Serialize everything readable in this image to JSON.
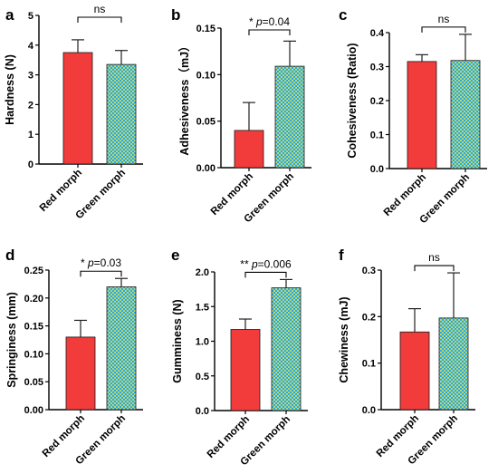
{
  "colors": {
    "red": "#f23b3b",
    "pattern_blue": "#29a8e6",
    "pattern_green": "#b8d870",
    "axis": "#000000"
  },
  "chart_data": [
    {
      "letter": "a",
      "type": "bar",
      "categories": [
        "Red morph",
        "Green morph"
      ],
      "ylabel": "Hardness (N)",
      "values": [
        3.75,
        3.35
      ],
      "errors": [
        0.43,
        0.47
      ],
      "ylim": [
        0,
        5
      ],
      "yticks": [
        "0",
        "1",
        "2",
        "3",
        "4",
        "5"
      ],
      "significance": {
        "stars": "",
        "text": "ns"
      }
    },
    {
      "letter": "b",
      "type": "bar",
      "categories": [
        "Red morph",
        "Green morph"
      ],
      "ylabel": "Adhesiveness（mJ）",
      "values": [
        0.04,
        0.109
      ],
      "errors": [
        0.03,
        0.027
      ],
      "ylim": [
        0,
        0.15
      ],
      "yticks": [
        "0.00",
        "0.05",
        "0.10",
        "0.15"
      ],
      "significance": {
        "stars": "*",
        "text": "p=0.04"
      }
    },
    {
      "letter": "c",
      "type": "bar",
      "categories": [
        "Red morph",
        "Green morph"
      ],
      "ylabel": "Cohesiveness (Ratio)",
      "values": [
        0.315,
        0.318
      ],
      "errors": [
        0.02,
        0.077
      ],
      "ylim": [
        0,
        0.4
      ],
      "yticks": [
        "0.0",
        "0.1",
        "0.2",
        "0.3",
        "0.4"
      ],
      "significance": {
        "stars": "",
        "text": "ns"
      }
    },
    {
      "letter": "d",
      "type": "bar",
      "categories": [
        "Red morph",
        "Green morph"
      ],
      "ylabel": "Springiness (mm)",
      "values": [
        0.13,
        0.22
      ],
      "errors": [
        0.03,
        0.015
      ],
      "ylim": [
        0,
        0.25
      ],
      "yticks": [
        "0.00",
        "0.05",
        "0.10",
        "0.15",
        "0.20",
        "0.25"
      ],
      "significance": {
        "stars": "*",
        "text": "p=0.03"
      }
    },
    {
      "letter": "e",
      "type": "bar",
      "categories": [
        "Red morph",
        "Green morph"
      ],
      "ylabel": "Gumminess (N)",
      "values": [
        1.17,
        1.77
      ],
      "errors": [
        0.15,
        0.12
      ],
      "ylim": [
        0,
        2.0
      ],
      "yticks": [
        "0.0",
        "0.5",
        "1.0",
        "1.5",
        "2.0"
      ],
      "significance": {
        "stars": "**",
        "text": "p=0.006"
      }
    },
    {
      "letter": "f",
      "type": "bar",
      "categories": [
        "Red morph",
        "Green morph"
      ],
      "ylabel": "Chewiness (mJ)",
      "values": [
        0.167,
        0.197
      ],
      "errors": [
        0.05,
        0.097
      ],
      "ylim": [
        0,
        0.3
      ],
      "yticks": [
        "0.0",
        "0.1",
        "0.2",
        "0.3"
      ],
      "significance": {
        "stars": "",
        "text": "ns"
      }
    }
  ]
}
